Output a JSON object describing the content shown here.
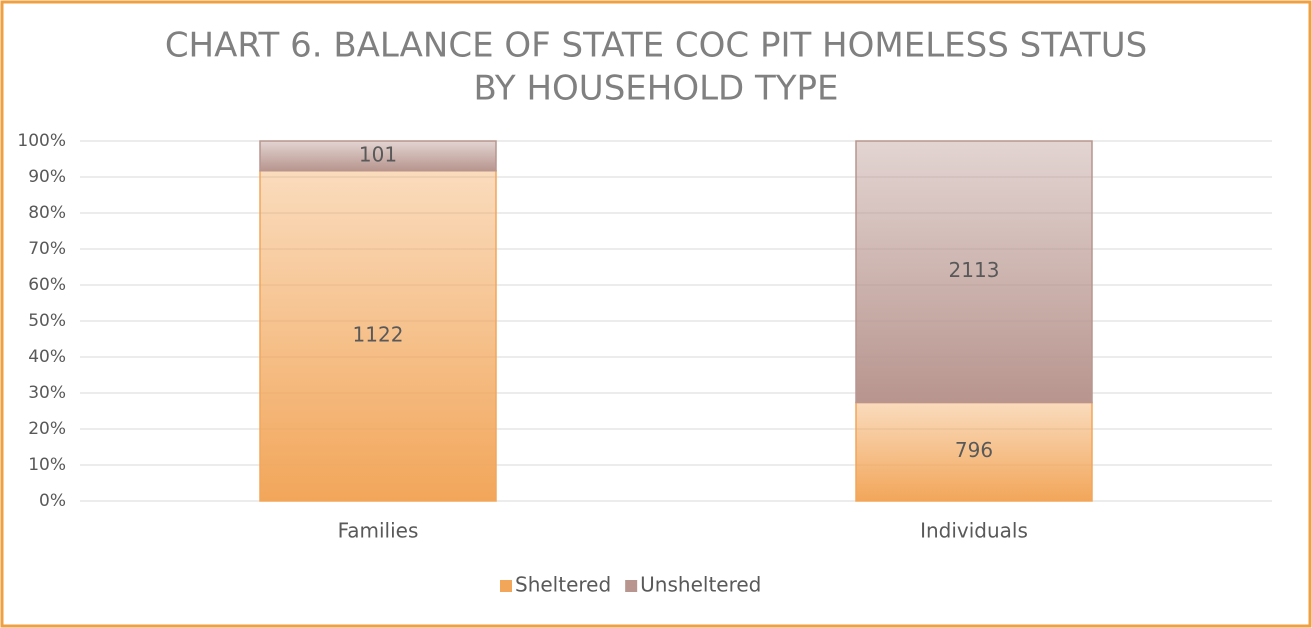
{
  "chart_data": {
    "type": "bar",
    "stacking": "percent",
    "title": [
      "CHART 6. BALANCE OF STATE COC PIT HOMELESS STATUS",
      "BY HOUSEHOLD TYPE"
    ],
    "categories": [
      "Families",
      "Individuals"
    ],
    "series": [
      {
        "name": "Sheltered",
        "color": "#f2a65a",
        "values": [
          1122,
          796
        ]
      },
      {
        "name": "Unsheltered",
        "color": "#b8958e",
        "values": [
          101,
          2113
        ]
      }
    ],
    "ylim": [
      0,
      100
    ],
    "yticks": [
      {
        "value": 0,
        "label": "0%"
      },
      {
        "value": 10,
        "label": "10%"
      },
      {
        "value": 20,
        "label": "20%"
      },
      {
        "value": 30,
        "label": "30%"
      },
      {
        "value": 40,
        "label": "40%"
      },
      {
        "value": 50,
        "label": "50%"
      },
      {
        "value": 60,
        "label": "60%"
      },
      {
        "value": 70,
        "label": "70%"
      },
      {
        "value": 80,
        "label": "80%"
      },
      {
        "value": 90,
        "label": "90%"
      },
      {
        "value": 100,
        "label": "100%"
      }
    ],
    "grid": true,
    "legend": "bottom"
  }
}
